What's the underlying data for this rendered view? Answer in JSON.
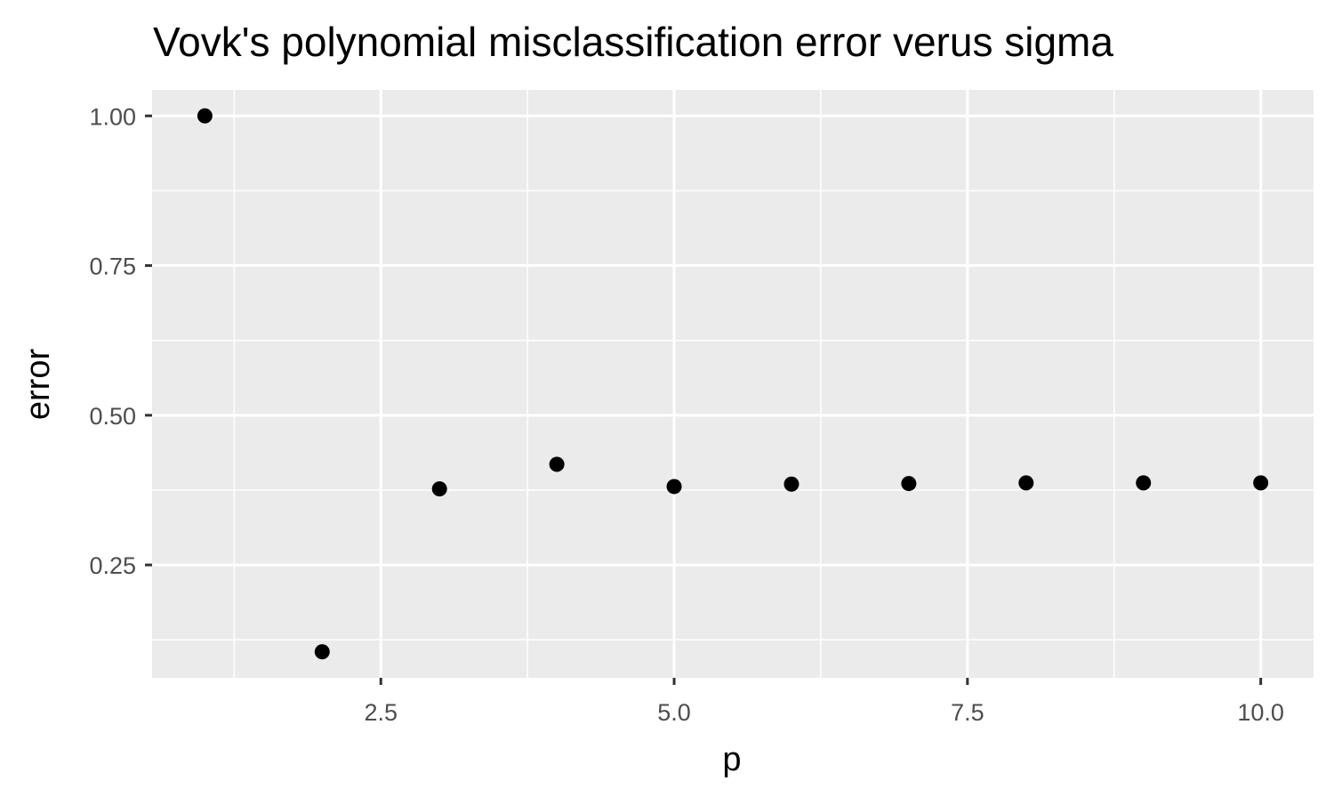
{
  "chart_data": {
    "type": "scatter",
    "title": "Vovk's polynomial misclassification error verus sigma",
    "xlabel": "p",
    "ylabel": "error",
    "xlim": [
      0.55,
      10.45
    ],
    "ylim": [
      0.0615,
      1.0435
    ],
    "x_ticks": [
      2.5,
      5.0,
      7.5,
      10.0
    ],
    "x_tick_labels": [
      "2.5",
      "5.0",
      "7.5",
      "10.0"
    ],
    "y_ticks": [
      0.25,
      0.5,
      0.75,
      1.0
    ],
    "y_tick_labels": [
      "0.25",
      "0.50",
      "0.75",
      "1.00"
    ],
    "x_minor_ticks": [
      1.25,
      3.75,
      6.25,
      8.75
    ],
    "y_minor_ticks": [
      0.125,
      0.375,
      0.625,
      0.875
    ],
    "grid": true,
    "legend": "none",
    "panel_background": "#ebebeb",
    "grid_color": "#ffffff",
    "point_color": "#000000",
    "series": [
      {
        "x": [
          1,
          2,
          3,
          4,
          5,
          6,
          7,
          8,
          9,
          10
        ],
        "y": [
          1.0,
          0.105,
          0.377,
          0.418,
          0.381,
          0.385,
          0.386,
          0.387,
          0.387,
          0.387
        ]
      }
    ]
  }
}
